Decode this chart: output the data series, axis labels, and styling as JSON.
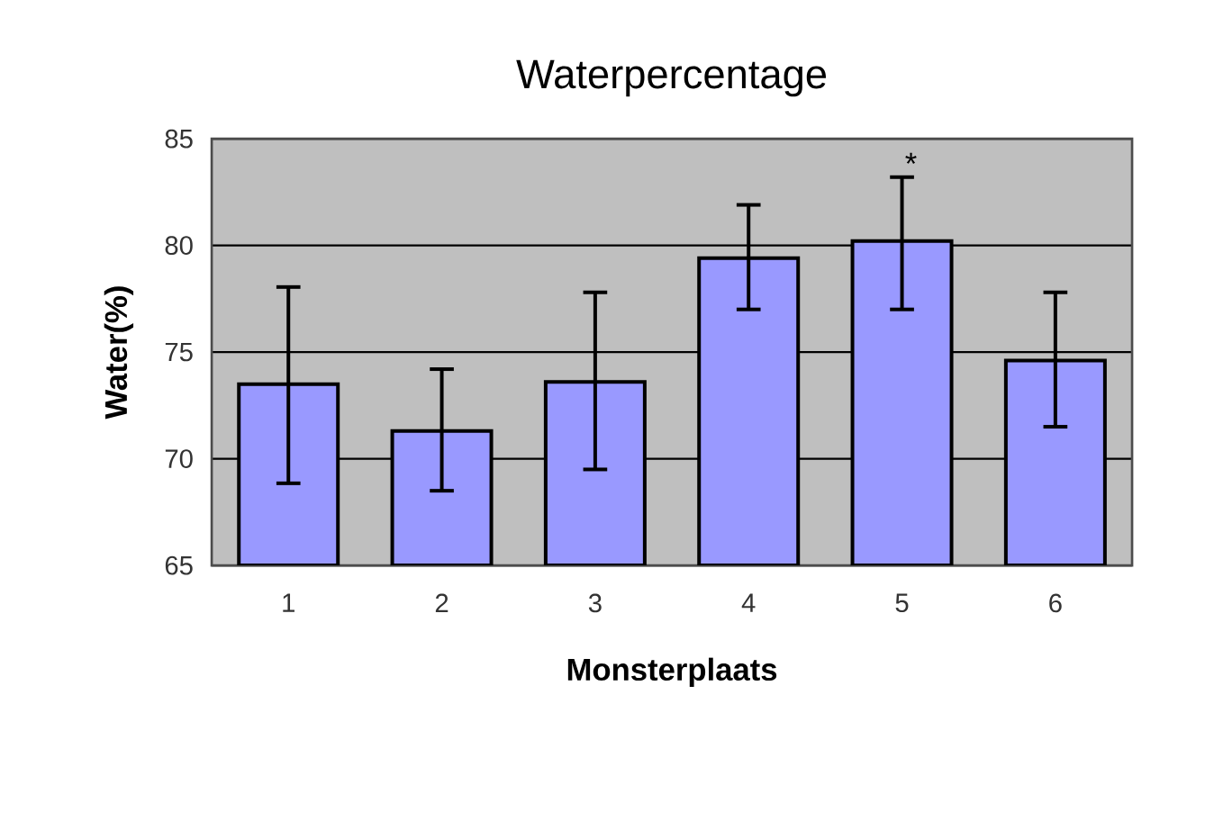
{
  "chart_data": {
    "type": "bar",
    "title": "Waterpercentage",
    "xlabel": "Monsterplaats",
    "ylabel": "Water(%)",
    "categories": [
      "1",
      "2",
      "3",
      "4",
      "5",
      "6"
    ],
    "values": [
      73.5,
      71.3,
      73.6,
      79.4,
      80.2,
      74.6
    ],
    "errors": [
      [
        68.85,
        78.05
      ],
      [
        68.5,
        74.2
      ],
      [
        69.5,
        77.8
      ],
      [
        77.0,
        81.9
      ],
      [
        77.0,
        83.2
      ],
      [
        71.5,
        77.8
      ]
    ],
    "color": "#9999ff",
    "ylim": [
      65,
      85
    ],
    "yticks": [
      65,
      70,
      75,
      80,
      85
    ],
    "grid": "y",
    "annotations": [
      {
        "text": "*",
        "x": "5",
        "y": 83.2
      }
    ]
  }
}
